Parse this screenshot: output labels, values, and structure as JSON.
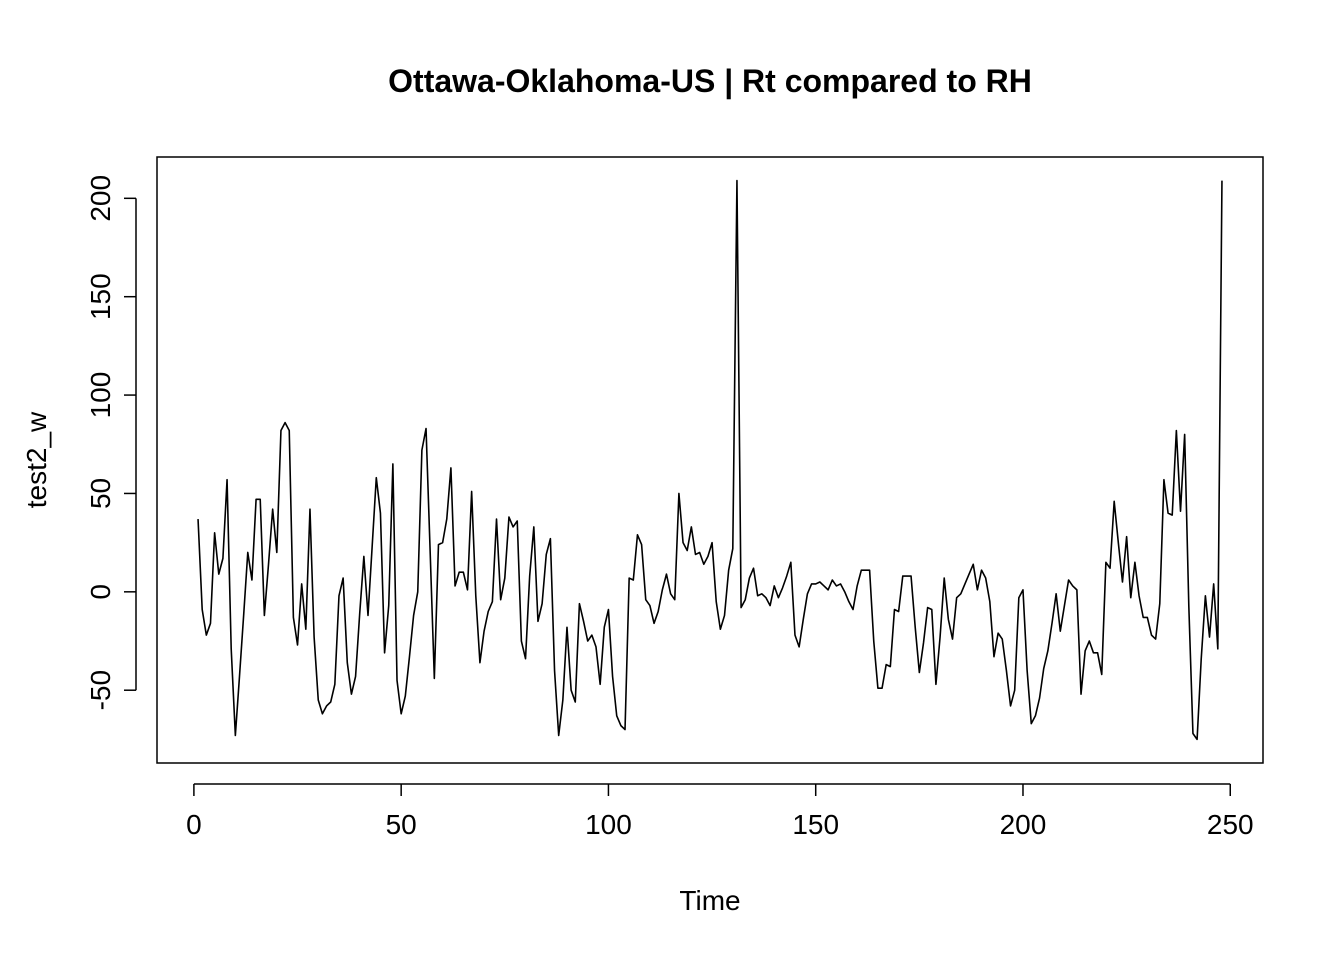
{
  "chart_data": {
    "type": "line",
    "title": "Ottawa-Oklahoma-US | Rt compared to RH",
    "xlabel": "Time",
    "ylabel": "test2_w",
    "xlim": [
      -8.9,
      257.9
    ],
    "ylim": [
      -87,
      221
    ],
    "xticks": [
      0,
      50,
      100,
      150,
      200,
      250
    ],
    "yticks": [
      -50,
      0,
      50,
      100,
      150,
      200
    ],
    "grid": false,
    "line_color": "#000000",
    "series": [
      {
        "x": [
          1,
          2,
          3,
          4,
          5,
          6,
          7,
          8,
          9,
          10,
          11,
          12,
          13,
          14,
          15,
          16,
          17,
          18,
          19,
          20,
          21,
          22,
          23,
          24,
          25,
          26,
          27,
          28,
          29,
          30,
          31,
          32,
          33,
          34,
          35,
          36,
          37,
          38,
          39,
          40,
          41,
          42,
          43,
          44,
          45,
          46,
          47,
          48,
          49,
          50,
          51,
          52,
          53,
          54,
          55,
          56,
          57,
          58,
          59,
          60,
          61,
          62,
          63,
          64,
          65,
          66,
          67,
          68,
          69,
          70,
          71,
          72,
          73,
          74,
          75,
          76,
          77,
          78,
          79,
          80,
          81,
          82,
          83,
          84,
          85,
          86,
          87,
          88,
          89,
          90,
          91,
          92,
          93,
          94,
          95,
          96,
          97,
          98,
          99,
          100,
          101,
          102,
          103,
          104,
          105,
          106,
          107,
          108,
          109,
          110,
          111,
          112,
          113,
          114,
          115,
          116,
          117,
          118,
          119,
          120,
          121,
          122,
          123,
          124,
          125,
          126,
          127,
          128,
          129,
          130,
          131,
          132,
          133,
          134,
          135,
          136,
          137,
          138,
          139,
          140,
          141,
          142,
          143,
          144,
          145,
          146,
          147,
          148,
          149,
          150,
          151,
          152,
          153,
          154,
          155,
          156,
          157,
          158,
          159,
          160,
          161,
          162,
          163,
          164,
          165,
          166,
          167,
          168,
          169,
          170,
          171,
          172,
          173,
          174,
          175,
          176,
          177,
          178,
          179,
          180,
          181,
          182,
          183,
          184,
          185,
          186,
          187,
          188,
          189,
          190,
          191,
          192,
          193,
          194,
          195,
          196,
          197,
          198,
          199,
          200,
          201,
          202,
          203,
          204,
          205,
          206,
          207,
          208,
          209,
          210,
          211,
          212,
          213,
          214,
          215,
          216,
          217,
          218,
          219,
          220,
          221,
          222,
          223,
          224,
          225,
          226,
          227,
          228,
          229,
          230,
          231,
          232,
          233,
          234,
          235,
          236,
          237,
          238,
          239,
          240,
          241,
          242,
          243,
          244,
          245,
          246,
          247,
          248
        ],
        "values": [
          37,
          -9,
          -22,
          -16,
          30,
          9,
          17,
          57,
          -29,
          -73,
          -43,
          -12,
          20,
          6,
          47,
          47,
          -12,
          14,
          42,
          20,
          82,
          86,
          82,
          -13,
          -27,
          4,
          -19,
          42,
          -23,
          -55,
          -62,
          -58,
          -56,
          -47,
          -2,
          7,
          -36,
          -52,
          -43,
          -11,
          18,
          -12,
          23,
          58,
          40,
          -31,
          -7,
          65,
          -45,
          -62,
          -53,
          -33,
          -12,
          0,
          72,
          83,
          20,
          -44,
          24,
          25,
          37,
          63,
          3,
          10,
          10,
          1,
          51,
          -2,
          -36,
          -20,
          -10,
          -5,
          37,
          -4,
          7,
          38,
          33,
          36,
          -25,
          -34,
          8,
          33,
          -15,
          -6,
          19,
          27,
          -40,
          -73,
          -55,
          -18,
          -50,
          -56,
          -6,
          -15,
          -25,
          -22,
          -28,
          -47,
          -18,
          -9,
          -43,
          -63,
          -68,
          -70,
          7,
          6,
          29,
          24,
          -4,
          -7,
          -16,
          -10,
          1,
          9,
          -1,
          -4,
          50,
          25,
          21,
          33,
          19,
          20,
          14,
          18,
          25,
          -5,
          -19,
          -12,
          11,
          22,
          209,
          -8,
          -4,
          7,
          12,
          -2,
          -1,
          -3,
          -7,
          3,
          -3,
          2,
          8,
          15,
          -22,
          -28,
          -14,
          -1,
          4,
          4,
          5,
          3,
          1,
          6,
          3,
          4,
          0,
          -5,
          -9,
          3,
          11,
          11,
          11,
          -25,
          -49,
          -49,
          -37,
          -38,
          -9,
          -10,
          8,
          8,
          8,
          -18,
          -41,
          -26,
          -8,
          -9,
          -47,
          -23,
          7,
          -14,
          -24,
          -3,
          -1,
          4,
          9,
          14,
          1,
          11,
          7,
          -5,
          -33,
          -21,
          -24,
          -40,
          -58,
          -50,
          -3,
          1,
          -40,
          -67,
          -63,
          -54,
          -39,
          -30,
          -16,
          -1,
          -20,
          -7,
          6,
          3,
          1,
          -52,
          -30,
          -25,
          -31,
          -31,
          -42,
          15,
          12,
          46,
          25,
          5,
          28,
          -3,
          15,
          -2,
          -13,
          -13,
          -22,
          -24,
          -6,
          57,
          40,
          39,
          82,
          41,
          80,
          -7,
          -72,
          -75,
          -34,
          -2,
          -23,
          4,
          -29,
          209
        ]
      }
    ]
  }
}
